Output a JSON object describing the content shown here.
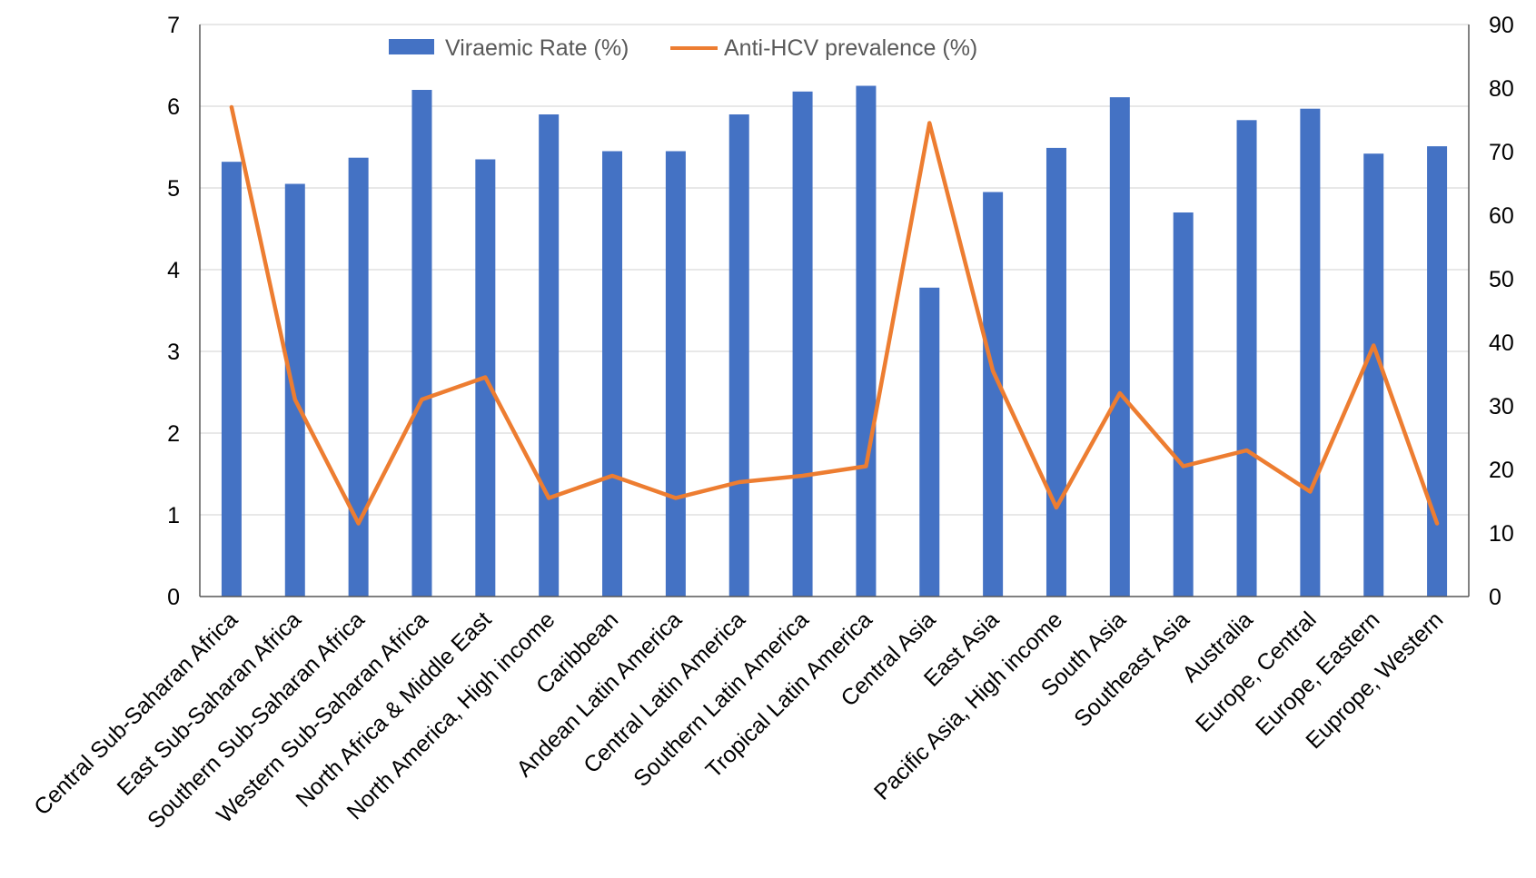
{
  "chart_data": {
    "type": "bar",
    "categories": [
      "Central Sub-Saharan Africa",
      "East Sub-Saharan Africa",
      "Southern Sub-Saharan Africa",
      "Western Sub-Saharan Africa",
      "North Africa & Middle East",
      "North America, High income",
      "Caribbean",
      "Andean Latin America",
      "Central Latin America",
      "Southern Latin America",
      "Tropical Latin America",
      "Central Asia",
      "East Asia",
      "Pacific Asia, High income",
      "South Asia",
      "Southeast Asia",
      "Australia",
      "Europe, Central",
      "Europe, Eastern",
      "Euprope, Western"
    ],
    "series": [
      {
        "name": "Viraemic Rate (%)",
        "type": "bar",
        "axis": "left",
        "color": "#4472C4",
        "values": [
          5.32,
          5.05,
          5.37,
          6.2,
          5.35,
          5.9,
          5.45,
          5.45,
          5.9,
          6.18,
          6.25,
          3.78,
          4.95,
          5.49,
          6.11,
          4.7,
          5.83,
          5.97,
          5.42,
          5.51
        ]
      },
      {
        "name": "Anti-HCV prevalence (%)",
        "type": "line",
        "axis": "right",
        "color": "#ED7D31",
        "values": [
          77.0,
          31.0,
          11.5,
          31.0,
          34.5,
          15.5,
          19.0,
          15.5,
          18.0,
          19.0,
          20.5,
          74.5,
          35.5,
          14.0,
          32.0,
          20.5,
          23.0,
          16.5,
          39.5,
          11.5
        ]
      }
    ],
    "y_left": {
      "ylim": [
        0,
        7
      ],
      "ticks": [
        "0",
        "1",
        "2",
        "3",
        "4",
        "5",
        "6",
        "7"
      ]
    },
    "y_right": {
      "ylim": [
        0,
        90
      ],
      "ticks": [
        "0",
        "10",
        "20",
        "30",
        "40",
        "50",
        "60",
        "70",
        "80",
        "90"
      ]
    },
    "grid": true,
    "legend_position": "top",
    "title": "",
    "xlabel": "",
    "ylabel": ""
  }
}
